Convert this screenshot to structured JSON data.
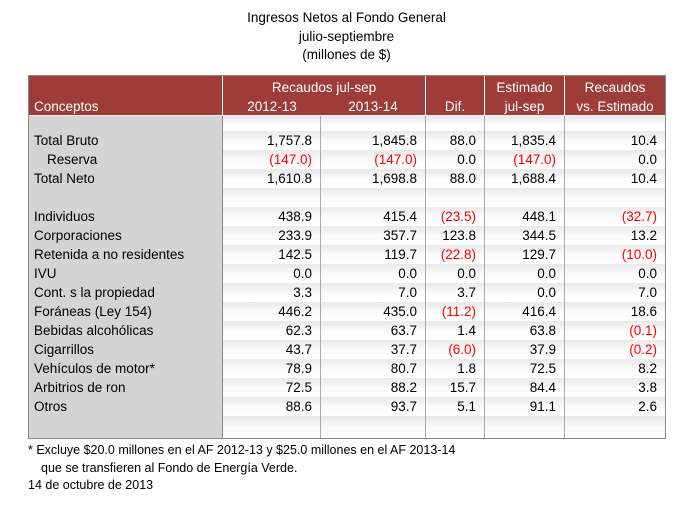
{
  "title": {
    "line1": "Ingresos Netos al Fondo General",
    "line2": "julio-septiembre",
    "line3": "(millones de $)"
  },
  "table": {
    "header": {
      "conceptos": "Conceptos",
      "group_recaudos": "Recaudos jul-sep",
      "col_2012": "2012-13",
      "col_2013": "2013-14",
      "dif": "Dif.",
      "estimado_line1": "Estimado",
      "estimado_line2": "jul-sep",
      "vs_line1": "Recaudos",
      "vs_line2": "vs. Estimado"
    },
    "rows": [
      {
        "type": "spacer-sm",
        "concept": "",
        "values": [
          "",
          "",
          "",
          "",
          ""
        ]
      },
      {
        "concept": "Total Bruto",
        "values": [
          "1,757.8",
          "1,845.8",
          "88.0",
          "1,835.4",
          "10.4"
        ]
      },
      {
        "concept": "Reserva",
        "indent": true,
        "values": [
          "(147.0)",
          "(147.0)",
          "0.0",
          "(147.0)",
          "0.0"
        ]
      },
      {
        "concept": "Total Neto",
        "values": [
          "1,610.8",
          "1,698.8",
          "88.0",
          "1,688.4",
          "10.4"
        ]
      },
      {
        "type": "spacer",
        "concept": "",
        "values": [
          "",
          "",
          "",
          "",
          ""
        ]
      },
      {
        "concept": "Individuos",
        "values": [
          "438.9",
          "415.4",
          "(23.5)",
          "448.1",
          "(32.7)"
        ]
      },
      {
        "concept": "Corporaciones",
        "values": [
          "233.9",
          "357.7",
          "123.8",
          "344.5",
          "13.2"
        ]
      },
      {
        "concept": "Retenida a no residentes",
        "values": [
          "142.5",
          "119.7",
          "(22.8)",
          "129.7",
          "(10.0)"
        ]
      },
      {
        "concept": "IVU",
        "values": [
          "0.0",
          "0.0",
          "0.0",
          "0.0",
          "0.0"
        ]
      },
      {
        "concept": "Cont. s la propiedad",
        "values": [
          "3.3",
          "7.0",
          "3.7",
          "0.0",
          "7.0"
        ]
      },
      {
        "concept": "Foráneas (Ley 154)",
        "values": [
          "446.2",
          "435.0",
          "(11.2)",
          "416.4",
          "18.6"
        ]
      },
      {
        "concept": "Bebidas alcohólicas",
        "values": [
          "62.3",
          "63.7",
          "1.4",
          "63.8",
          "(0.1)"
        ]
      },
      {
        "concept": "Cigarrillos",
        "values": [
          "43.7",
          "37.7",
          "(6.0)",
          "37.9",
          "(0.2)"
        ]
      },
      {
        "concept": "Vehículos de motor*",
        "values": [
          "78.9",
          "80.7",
          "1.8",
          "72.5",
          "8.2"
        ]
      },
      {
        "concept": "Arbitrios de ron",
        "values": [
          "72.5",
          "88.2",
          "15.7",
          "84.4",
          "3.8"
        ]
      },
      {
        "concept": "Otros",
        "values": [
          "88.6",
          "93.7",
          "5.1",
          "91.1",
          "2.6"
        ]
      },
      {
        "type": "spacer-lg",
        "concept": "",
        "values": [
          "",
          "",
          "",
          "",
          ""
        ]
      }
    ]
  },
  "footnote": {
    "line1": "* Excluye $20.0 millones en el AF 2012-13 y $25.0 millones en el AF 2013-14",
    "line2": "que se transfieren al Fondo de Energía Verde.",
    "date": "14 de octubre de 2013"
  },
  "colors": {
    "header_bg": "#9E3C3A",
    "negative": "#FF0000",
    "concept_col_bg": "#D4D4D4"
  }
}
